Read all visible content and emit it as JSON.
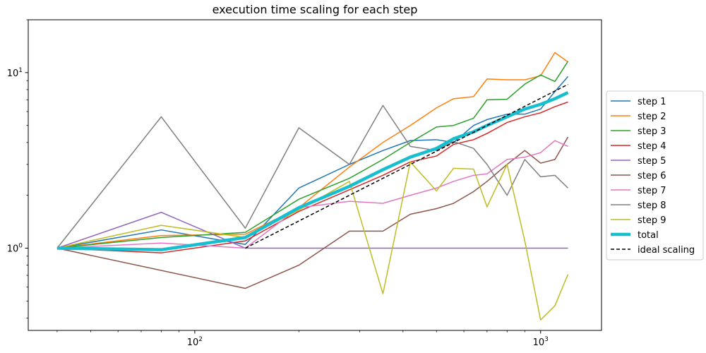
{
  "chart_data": {
    "type": "line",
    "title": "execution time scaling for each step",
    "xscale": "log",
    "yscale": "log",
    "xlim": [
      33,
      1500
    ],
    "ylim": [
      0.34,
      20
    ],
    "xticks": [
      {
        "value": 100,
        "base": "10",
        "exp": "2"
      },
      {
        "value": 1000,
        "base": "10",
        "exp": "3"
      }
    ],
    "yticks": [
      {
        "value": 1,
        "base": "10",
        "exp": "0"
      },
      {
        "value": 10,
        "base": "10",
        "exp": "1"
      }
    ],
    "grid": false,
    "legend": "center-right",
    "series": [
      {
        "name": "step 1",
        "color": "#1f77b4",
        "width": 1.5,
        "dash": "",
        "x": [
          40,
          80,
          140,
          200,
          280,
          350,
          420,
          500,
          560,
          640,
          700,
          800,
          900,
          1000,
          1100,
          1200
        ],
        "y": [
          1.0,
          1.27,
          1.05,
          2.2,
          3.0,
          3.6,
          4.1,
          4.15,
          4.0,
          5.0,
          5.4,
          5.8,
          5.8,
          6.2,
          7.8,
          9.5
        ]
      },
      {
        "name": "step 2",
        "color": "#ff7f0e",
        "width": 1.5,
        "dash": "",
        "x": [
          40,
          80,
          140,
          200,
          280,
          350,
          420,
          500,
          560,
          640,
          700,
          800,
          900,
          1000,
          1100,
          1200
        ],
        "y": [
          1.0,
          1.18,
          1.2,
          1.7,
          2.9,
          4.0,
          5.0,
          6.3,
          7.1,
          7.3,
          9.2,
          9.1,
          9.1,
          9.6,
          13.0,
          11.5
        ]
      },
      {
        "name": "step 3",
        "color": "#2ca02c",
        "width": 1.5,
        "dash": "",
        "x": [
          40,
          80,
          140,
          200,
          280,
          350,
          420,
          500,
          560,
          640,
          700,
          800,
          900,
          1000,
          1100,
          1200
        ],
        "y": [
          1.0,
          1.15,
          1.23,
          1.9,
          2.5,
          3.2,
          4.0,
          4.9,
          5.0,
          5.5,
          7.0,
          7.05,
          8.6,
          9.7,
          8.9,
          11.6
        ]
      },
      {
        "name": "step 4",
        "color": "#d62728",
        "width": 1.5,
        "dash": "",
        "x": [
          40,
          80,
          140,
          200,
          280,
          350,
          420,
          500,
          560,
          640,
          700,
          800,
          900,
          1000,
          1100,
          1200
        ],
        "y": [
          1.0,
          0.94,
          1.1,
          1.62,
          2.15,
          2.6,
          3.1,
          3.35,
          3.9,
          4.15,
          4.5,
          5.2,
          5.6,
          5.9,
          6.4,
          6.8
        ]
      },
      {
        "name": "step 5",
        "color": "#9467bd",
        "width": 1.5,
        "dash": "",
        "x": [
          40,
          80,
          140,
          200,
          280,
          350,
          420,
          500,
          560,
          640,
          700,
          800,
          900,
          1000,
          1100,
          1200
        ],
        "y": [
          1.0,
          1.6,
          1.0,
          1.0,
          1.0,
          1.0,
          1.0,
          1.0,
          1.0,
          1.0,
          1.0,
          1.0,
          1.0,
          1.0,
          1.0,
          1.0
        ]
      },
      {
        "name": "step 6",
        "color": "#8c564b",
        "width": 1.5,
        "dash": "",
        "x": [
          40,
          140,
          200,
          280,
          350,
          420,
          500,
          560,
          640,
          700,
          800,
          900,
          1000,
          1100,
          1200
        ],
        "y": [
          1.0,
          0.59,
          0.8,
          1.25,
          1.25,
          1.56,
          1.68,
          1.8,
          2.1,
          2.4,
          3.0,
          3.6,
          3.05,
          3.2,
          4.3
        ]
      },
      {
        "name": "step 7",
        "color": "#e377c2",
        "width": 1.5,
        "dash": "",
        "x": [
          40,
          80,
          140,
          200,
          280,
          350,
          420,
          500,
          560,
          640,
          700,
          800,
          900,
          1000,
          1100,
          1200
        ],
        "y": [
          1.0,
          1.07,
          1.0,
          1.7,
          1.85,
          1.8,
          2.0,
          2.2,
          2.4,
          2.6,
          2.65,
          3.2,
          3.3,
          3.5,
          4.1,
          3.8
        ]
      },
      {
        "name": "step 8",
        "color": "#7f7f7f",
        "width": 1.5,
        "dash": "",
        "x": [
          40,
          80,
          140,
          200,
          280,
          350,
          420,
          500,
          560,
          640,
          700,
          800,
          900,
          1000,
          1100,
          1200
        ],
        "y": [
          1.0,
          5.6,
          1.3,
          4.85,
          3.0,
          6.5,
          3.8,
          3.6,
          4.05,
          3.7,
          3.0,
          2.0,
          3.2,
          2.55,
          2.6,
          2.2
        ]
      },
      {
        "name": "step 9",
        "color": "#bcbd22",
        "width": 1.5,
        "dash": "",
        "x": [
          40,
          80,
          140,
          200,
          280,
          350,
          420,
          500,
          560,
          640,
          700,
          800,
          900,
          1000,
          1100,
          1200
        ],
        "y": [
          1.0,
          1.35,
          1.15,
          1.65,
          2.4,
          0.55,
          3.1,
          2.12,
          2.85,
          2.82,
          1.72,
          3.0,
          1.1,
          0.39,
          0.47,
          0.71
        ]
      },
      {
        "name": "total",
        "color": "#17becf",
        "width": 4.5,
        "dash": "",
        "x": [
          40,
          80,
          140,
          200,
          280,
          350,
          420,
          500,
          560,
          640,
          700,
          800,
          900,
          1000,
          1100,
          1200
        ],
        "y": [
          1.0,
          0.98,
          1.15,
          1.7,
          2.25,
          2.8,
          3.3,
          3.7,
          4.2,
          4.6,
          5.0,
          5.6,
          6.2,
          6.6,
          7.1,
          7.7
        ]
      },
      {
        "name": "ideal scaling",
        "color": "#000000",
        "width": 1.5,
        "dash": "5,3",
        "x": [
          140,
          1200
        ],
        "y": [
          1.0,
          8.57
        ]
      }
    ]
  }
}
